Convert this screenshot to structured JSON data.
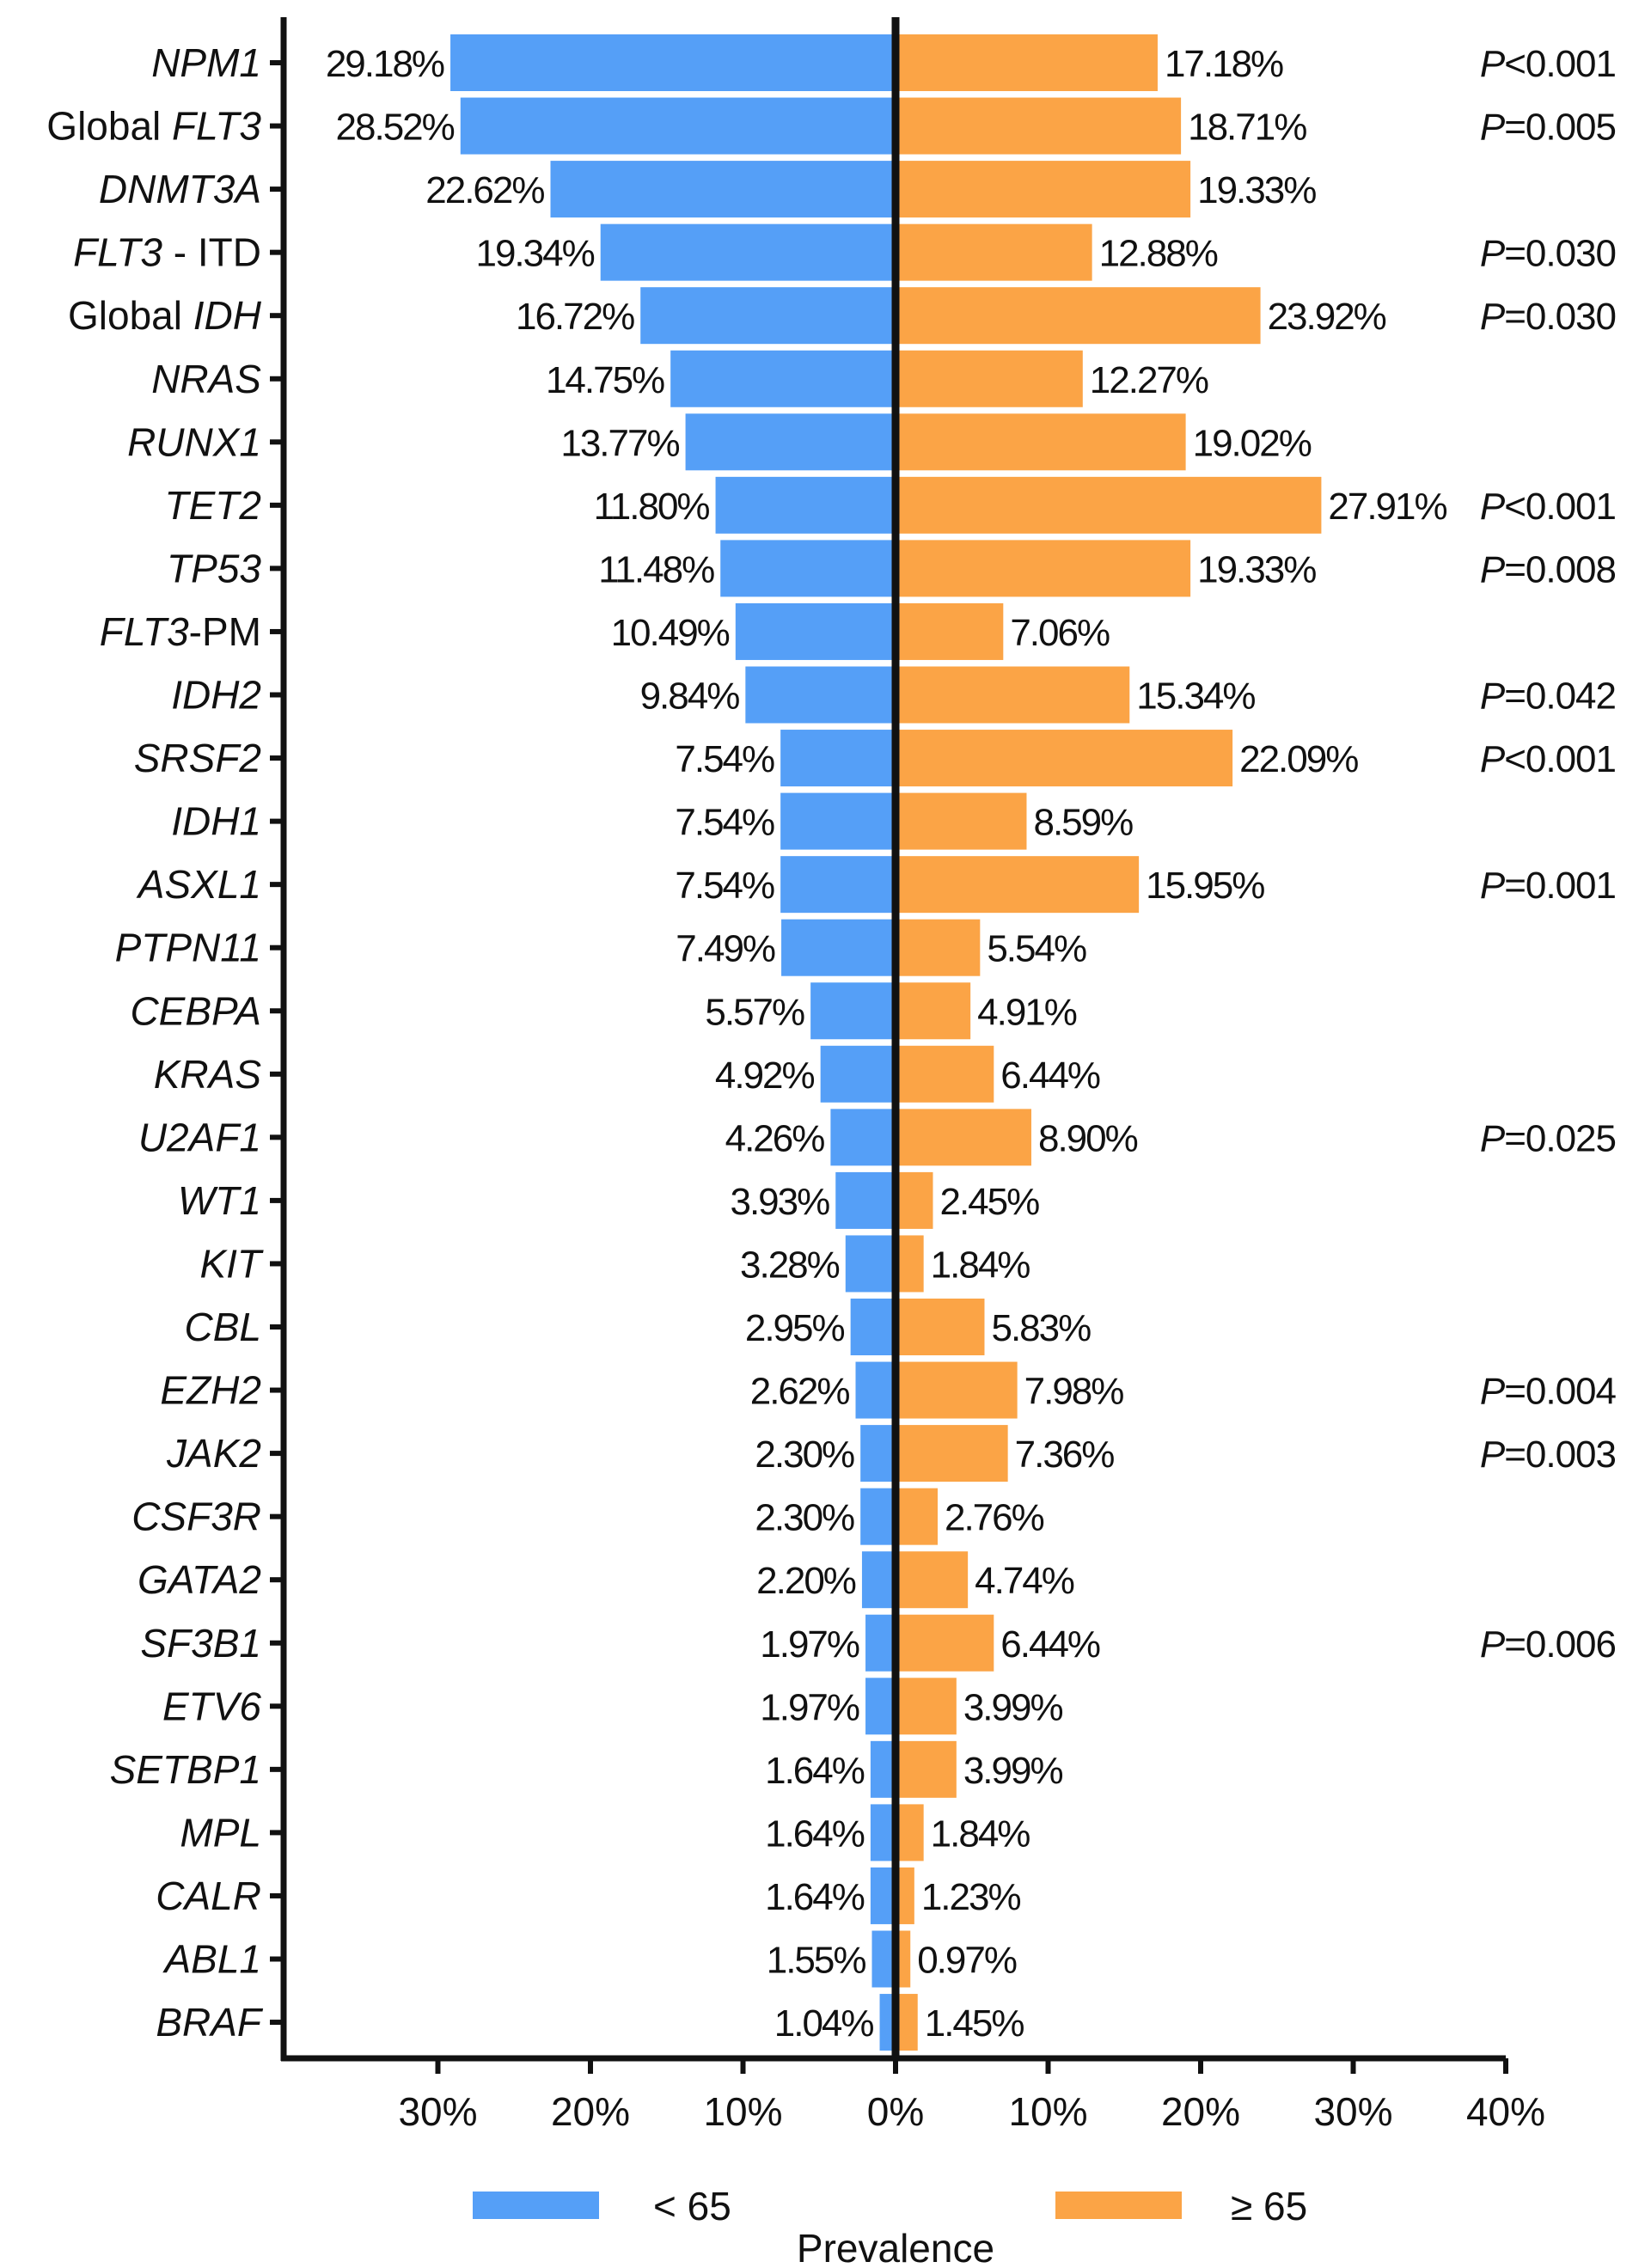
{
  "chart_data": {
    "type": "bar",
    "orientation": "horizontal-diverging",
    "xlabel": "Prevalence",
    "xlim": [
      -40,
      40
    ],
    "x_ticks": [
      "30%",
      "20%",
      "10%",
      "0%",
      "10%",
      "20%",
      "30%",
      "40%"
    ],
    "x_tick_values": [
      -30,
      -20,
      -10,
      0,
      10,
      20,
      30,
      40
    ],
    "colors": {
      "under65": "#559ff7",
      "over65": "#fba446"
    },
    "legend": [
      {
        "key": "under65",
        "label": "< 65"
      },
      {
        "key": "over65",
        "label": "≥ 65"
      }
    ],
    "series": [
      {
        "key": "under65",
        "name": "< 65"
      },
      {
        "key": "over65",
        "name": "≥ 65"
      }
    ],
    "rows": [
      {
        "italic": "NPM1",
        "under65": 29.18,
        "over65": 17.18,
        "under_label": "29.18%",
        "over_label": "17.18%",
        "p_prefix": "P",
        "p_value": "<0.001"
      },
      {
        "pre": "Global ",
        "italic": "FLT3",
        "under65": 28.52,
        "over65": 18.71,
        "under_label": "28.52%",
        "over_label": "18.71%",
        "p_prefix": "P",
        "p_value": "=0.005"
      },
      {
        "italic": "DNMT3A",
        "under65": 22.62,
        "over65": 19.33,
        "under_label": "22.62%",
        "over_label": "19.33%"
      },
      {
        "italic": "FLT3",
        "post": " - ITD",
        "under65": 19.34,
        "over65": 12.88,
        "under_label": "19.34%",
        "over_label": "12.88%",
        "p_prefix": "P",
        "p_value": "=0.030"
      },
      {
        "pre": "Global ",
        "italic": "IDH",
        "under65": 16.72,
        "over65": 23.92,
        "under_label": "16.72%",
        "over_label": "23.92%",
        "p_prefix": "P",
        "p_value": "=0.030"
      },
      {
        "italic": "NRAS",
        "under65": 14.75,
        "over65": 12.27,
        "under_label": "14.75%",
        "over_label": "12.27%"
      },
      {
        "italic": "RUNX1",
        "under65": 13.77,
        "over65": 19.02,
        "under_label": "13.77%",
        "over_label": "19.02%"
      },
      {
        "italic": "TET2",
        "under65": 11.8,
        "over65": 27.91,
        "under_label": "11.80%",
        "over_label": "27.91%",
        "p_prefix": "P",
        "p_value": "<0.001"
      },
      {
        "italic": "TP53",
        "under65": 11.48,
        "over65": 19.33,
        "under_label": "11.48%",
        "over_label": "19.33%",
        "p_prefix": "P",
        "p_value": "=0.008"
      },
      {
        "italic": "FLT3",
        "post": "-PM",
        "under65": 10.49,
        "over65": 7.06,
        "under_label": "10.49%",
        "over_label": "7.06%"
      },
      {
        "italic": "IDH2",
        "under65": 9.84,
        "over65": 15.34,
        "under_label": "9.84%",
        "over_label": "15.34%",
        "p_prefix": "P",
        "p_value": "=0.042"
      },
      {
        "italic": "SRSF2",
        "under65": 7.54,
        "over65": 22.09,
        "under_label": "7.54%",
        "over_label": "22.09%",
        "p_prefix": "P",
        "p_value": "<0.001"
      },
      {
        "italic": "IDH1",
        "under65": 7.54,
        "over65": 8.59,
        "under_label": "7.54%",
        "over_label": "8.59%"
      },
      {
        "italic": "ASXL1",
        "under65": 7.54,
        "over65": 15.95,
        "under_label": "7.54%",
        "over_label": "15.95%",
        "p_prefix": "P",
        "p_value": "=0.001"
      },
      {
        "italic": "PTPN11",
        "under65": 7.49,
        "over65": 5.54,
        "under_label": "7.49%",
        "over_label": "5.54%"
      },
      {
        "italic": "CEBPA",
        "under65": 5.57,
        "over65": 4.91,
        "under_label": "5.57%",
        "over_label": "4.91%"
      },
      {
        "italic": "KRAS",
        "under65": 4.92,
        "over65": 6.44,
        "under_label": "4.92%",
        "over_label": "6.44%"
      },
      {
        "italic": "U2AF1",
        "under65": 4.26,
        "over65": 8.9,
        "under_label": "4.26%",
        "over_label": "8.90%",
        "p_prefix": "P",
        "p_value": "=0.025"
      },
      {
        "italic": "WT1",
        "under65": 3.93,
        "over65": 2.45,
        "under_label": "3.93%",
        "over_label": "2.45%"
      },
      {
        "italic": "KIT",
        "under65": 3.28,
        "over65": 1.84,
        "under_label": "3.28%",
        "over_label": "1.84%"
      },
      {
        "italic": "CBL",
        "under65": 2.95,
        "over65": 5.83,
        "under_label": "2.95%",
        "over_label": "5.83%"
      },
      {
        "italic": "EZH2",
        "under65": 2.62,
        "over65": 7.98,
        "under_label": "2.62%",
        "over_label": "7.98%",
        "p_prefix": "P",
        "p_value": "=0.004"
      },
      {
        "italic": "JAK2",
        "under65": 2.3,
        "over65": 7.36,
        "under_label": "2.30%",
        "over_label": "7.36%",
        "p_prefix": "P",
        "p_value": "=0.003"
      },
      {
        "italic": "CSF3R",
        "under65": 2.3,
        "over65": 2.76,
        "under_label": "2.30%",
        "over_label": "2.76%"
      },
      {
        "italic": "GATA2",
        "under65": 2.2,
        "over65": 4.74,
        "under_label": "2.20%",
        "over_label": "4.74%"
      },
      {
        "italic": "SF3B1",
        "under65": 1.97,
        "over65": 6.44,
        "under_label": "1.97%",
        "over_label": "6.44%",
        "p_prefix": "P",
        "p_value": "=0.006"
      },
      {
        "italic": "ETV6",
        "under65": 1.97,
        "over65": 3.99,
        "under_label": "1.97%",
        "over_label": "3.99%"
      },
      {
        "italic": "SETBP1",
        "under65": 1.64,
        "over65": 3.99,
        "under_label": "1.64%",
        "over_label": "3.99%"
      },
      {
        "italic": "MPL",
        "under65": 1.64,
        "over65": 1.84,
        "under_label": "1.64%",
        "over_label": "1.84%"
      },
      {
        "italic": "CALR",
        "under65": 1.64,
        "over65": 1.23,
        "under_label": "1.64%",
        "over_label": "1.23%"
      },
      {
        "italic": "ABL1",
        "under65": 1.55,
        "over65": 0.97,
        "under_label": "1.55%",
        "over_label": "0.97%"
      },
      {
        "italic": "BRAF",
        "under65": 1.04,
        "over65": 1.45,
        "under_label": "1.04%",
        "over_label": "1.45%"
      }
    ]
  }
}
